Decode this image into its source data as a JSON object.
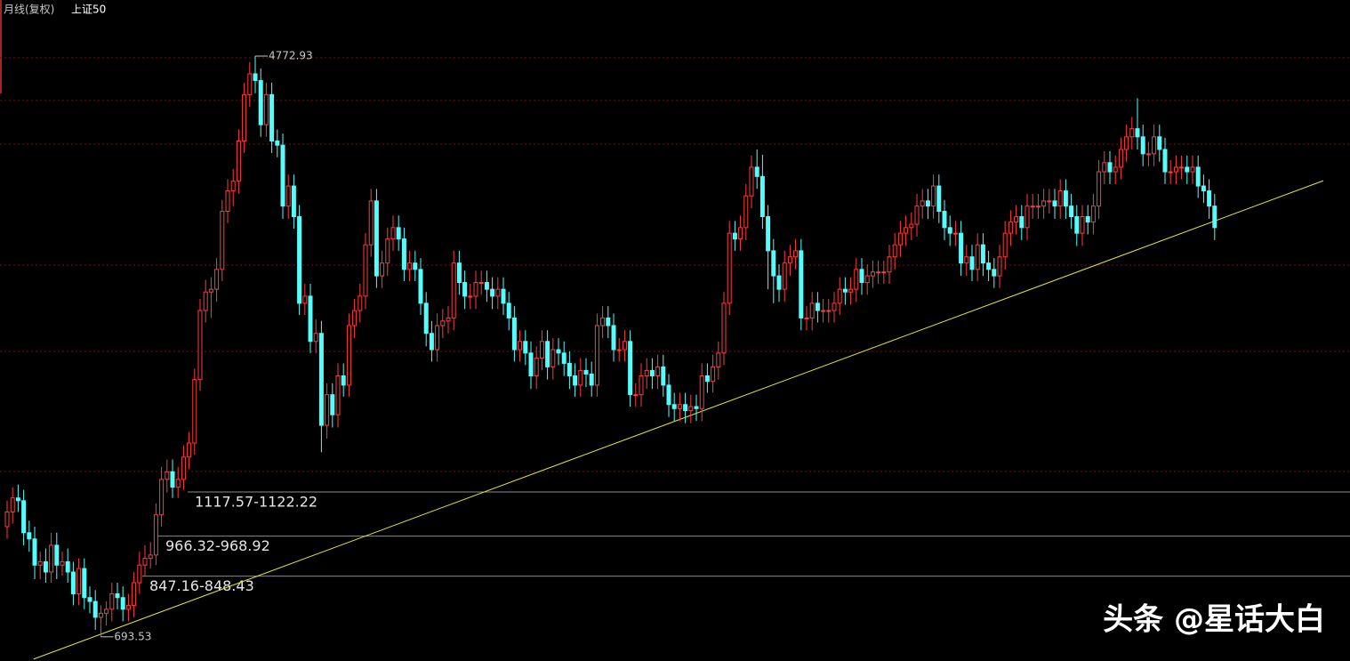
{
  "chart_data": {
    "type": "candlestick",
    "title": "月线(复权)",
    "subtitle": "上证50",
    "log_scale": true,
    "ylim": [
      640,
      5750
    ],
    "up_color": "#ff3c3c",
    "down_color": "#54fcfc",
    "open": [
      1000,
      1050,
      1100,
      1090,
      980,
      960,
      880,
      890,
      860,
      940,
      880,
      890,
      860,
      800,
      870,
      790,
      780,
      740,
      750,
      760,
      800,
      790,
      760,
      770,
      830,
      880,
      900,
      910,
      1040,
      1170,
      1200,
      1140,
      1170,
      1260,
      1320,
      1630,
      2050,
      2180,
      2200,
      2350,
      2850,
      3050,
      3150,
      3600,
      4200,
      4500,
      4400,
      3800,
      4200,
      3600,
      3550,
      2900,
      3100,
      2800,
      2100,
      2150,
      1850,
      1900,
      1400,
      1550,
      1450,
      1650,
      1600,
      1950,
      2050,
      2150,
      2550,
      2950,
      2300,
      2400,
      2600,
      2700,
      2600,
      2350,
      2400,
      2350,
      2100,
      1900,
      1800,
      1950,
      1980,
      2000,
      2400,
      2250,
      2150,
      2150,
      2250,
      2250,
      2200,
      2150,
      2200,
      2100,
      2000,
      1800,
      1850,
      1780,
      1650,
      1750,
      1850,
      1700,
      1800,
      1780,
      1720,
      1650,
      1600,
      1680,
      1660,
      1600,
      1950,
      2000,
      1950,
      1800,
      1800,
      1850,
      1550,
      1550,
      1650,
      1680,
      1650,
      1700,
      1600,
      1500,
      1480,
      1500,
      1470,
      1490,
      1480,
      1650,
      1620,
      1700,
      1780,
      2100,
      2650,
      2600,
      2700,
      3000,
      3300,
      3200,
      2800,
      2500,
      2300,
      2200,
      2400,
      2450,
      2500,
      2000,
      2000,
      2100,
      2050,
      2050,
      2050,
      2100,
      2200,
      2180,
      2200,
      2350,
      2250,
      2300,
      2330,
      2330,
      2330,
      2450,
      2550,
      2650,
      2700,
      2730,
      2900,
      2950,
      2900,
      3100,
      2850,
      2700,
      2650,
      2650,
      2400,
      2450,
      2350,
      2550,
      2400,
      2350,
      2300,
      2450,
      2650,
      2750,
      2800,
      2700,
      2900,
      2900,
      2900,
      2950,
      2950,
      2900,
      3050,
      2900,
      2800,
      2650,
      2800,
      2750,
      2900,
      3250,
      3350,
      3250,
      3300,
      3500,
      3650,
      3750,
      3650,
      3450,
      3450,
      3650,
      3500,
      3250,
      3250,
      3300,
      3300,
      3250,
      3300,
      3100,
      3050,
      2900
    ],
    "high": [
      1090,
      1140,
      1150,
      1130,
      1020,
      1000,
      920,
      930,
      980,
      980,
      920,
      930,
      890,
      900,
      900,
      820,
      810,
      770,
      780,
      830,
      830,
      820,
      800,
      860,
      920,
      940,
      950,
      1080,
      1220,
      1250,
      1250,
      1220,
      1310,
      1370,
      1690,
      2130,
      2270,
      2290,
      2440,
      2960,
      3170,
      3280,
      3740,
      4370,
      4680,
      4772.93,
      4580,
      4370,
      4370,
      3740,
      3690,
      3220,
      3220,
      2910,
      2240,
      2240,
      1990,
      1980,
      1610,
      1610,
      1720,
      1720,
      2030,
      2130,
      2240,
      2650,
      3070,
      3070,
      2500,
      2700,
      2810,
      2810,
      2700,
      2500,
      2500,
      2440,
      2180,
      1980,
      2030,
      2060,
      2080,
      2500,
      2500,
      2340,
      2240,
      2340,
      2340,
      2340,
      2290,
      2290,
      2290,
      2180,
      2080,
      1920,
      1920,
      1850,
      1820,
      1920,
      1920,
      1870,
      1870,
      1850,
      1790,
      1720,
      1750,
      1750,
      1730,
      2030,
      2080,
      2080,
      2030,
      1870,
      1920,
      1920,
      1610,
      1720,
      1750,
      1750,
      1770,
      1770,
      1660,
      1560,
      1560,
      1560,
      1550,
      1550,
      1720,
      1720,
      1770,
      1850,
      2180,
      2760,
      2760,
      2810,
      3120,
      3430,
      3500,
      3440,
      2910,
      2600,
      2390,
      2500,
      2550,
      2600,
      2600,
      2080,
      2180,
      2180,
      2130,
      2130,
      2180,
      2290,
      2290,
      2290,
      2440,
      2440,
      2390,
      2420,
      2420,
      2420,
      2550,
      2650,
      2760,
      2810,
      2840,
      3020,
      3070,
      3070,
      3220,
      3220,
      2960,
      2810,
      2760,
      2760,
      2550,
      2550,
      2650,
      2650,
      2500,
      2440,
      2550,
      2760,
      2860,
      2910,
      2910,
      3020,
      3020,
      3020,
      3070,
      3070,
      3070,
      3170,
      3170,
      3020,
      2910,
      2910,
      2910,
      3020,
      3380,
      3480,
      3480,
      3430,
      3640,
      3800,
      3900,
      4150,
      3800,
      3590,
      3800,
      3800,
      3640,
      3380,
      3430,
      3430,
      3430,
      3430,
      3430,
      3220,
      3170,
      3020
    ],
    "low": [
      960,
      1010,
      1050,
      940,
      920,
      840,
      840,
      830,
      830,
      840,
      850,
      830,
      770,
      770,
      760,
      750,
      710,
      693.53,
      720,
      730,
      760,
      730,
      730,
      740,
      800,
      850,
      870,
      880,
      1000,
      1120,
      1100,
      1100,
      1130,
      1210,
      1270,
      1570,
      1970,
      2000,
      2110,
      2260,
      2740,
      2900,
      3020,
      3460,
      4030,
      4220,
      3650,
      3650,
      3460,
      3410,
      2780,
      2780,
      2690,
      2020,
      2020,
      1780,
      1780,
      1280,
      1340,
      1390,
      1390,
      1540,
      1540,
      1870,
      1970,
      2060,
      2450,
      2210,
      2210,
      2300,
      2500,
      2500,
      2260,
      2260,
      2260,
      2020,
      1820,
      1730,
      1730,
      1870,
      1900,
      1920,
      2160,
      2060,
      2060,
      2060,
      2160,
      2110,
      2060,
      2060,
      2020,
      1920,
      1730,
      1730,
      1710,
      1580,
      1580,
      1680,
      1630,
      1630,
      1710,
      1650,
      1580,
      1540,
      1540,
      1590,
      1540,
      1540,
      1870,
      1870,
      1730,
      1730,
      1730,
      1490,
      1490,
      1490,
      1580,
      1580,
      1580,
      1540,
      1440,
      1420,
      1420,
      1410,
      1410,
      1420,
      1420,
      1560,
      1560,
      1630,
      1710,
      2020,
      2500,
      2500,
      2590,
      2880,
      3070,
      2690,
      2200,
      2100,
      2110,
      2110,
      2300,
      2350,
      1920,
      1920,
      1920,
      1970,
      1970,
      1970,
      1970,
      2020,
      2090,
      2090,
      2110,
      2160,
      2160,
      2210,
      2240,
      2240,
      2240,
      2350,
      2450,
      2540,
      2590,
      2620,
      2780,
      2780,
      2780,
      2740,
      2590,
      2540,
      2540,
      2300,
      2300,
      2260,
      2260,
      2300,
      2260,
      2210,
      2210,
      2350,
      2540,
      2640,
      2590,
      2590,
      2780,
      2780,
      2780,
      2830,
      2780,
      2780,
      2780,
      2690,
      2540,
      2540,
      2640,
      2640,
      2780,
      3120,
      3120,
      3120,
      3170,
      3360,
      3500,
      3500,
      3310,
      3310,
      3310,
      3360,
      3120,
      3120,
      3120,
      3170,
      3120,
      3120,
      2980,
      2930,
      2780,
      2590
    ],
    "close": [
      1050,
      1100,
      1090,
      980,
      960,
      880,
      890,
      860,
      940,
      880,
      890,
      860,
      800,
      870,
      790,
      780,
      740,
      750,
      760,
      800,
      790,
      760,
      770,
      830,
      880,
      900,
      910,
      1040,
      1170,
      1200,
      1140,
      1170,
      1260,
      1320,
      1630,
      2050,
      2180,
      2200,
      2350,
      2850,
      3050,
      3150,
      3600,
      4200,
      4500,
      4400,
      3800,
      4200,
      3600,
      3550,
      2900,
      3100,
      2800,
      2100,
      2150,
      1850,
      1900,
      1400,
      1550,
      1450,
      1650,
      1600,
      1950,
      2050,
      2150,
      2550,
      2950,
      2300,
      2400,
      2600,
      2700,
      2600,
      2350,
      2400,
      2350,
      2100,
      1900,
      1800,
      1950,
      1980,
      2000,
      2400,
      2250,
      2150,
      2150,
      2250,
      2250,
      2200,
      2150,
      2200,
      2100,
      2000,
      1800,
      1850,
      1780,
      1650,
      1750,
      1850,
      1700,
      1800,
      1780,
      1720,
      1650,
      1600,
      1680,
      1660,
      1600,
      1950,
      2000,
      1950,
      1800,
      1800,
      1850,
      1550,
      1550,
      1650,
      1680,
      1650,
      1700,
      1600,
      1500,
      1480,
      1500,
      1470,
      1490,
      1480,
      1650,
      1620,
      1700,
      1780,
      2100,
      2650,
      2600,
      2700,
      3000,
      3300,
      3200,
      2800,
      2500,
      2300,
      2200,
      2400,
      2450,
      2500,
      2000,
      2000,
      2100,
      2050,
      2050,
      2050,
      2100,
      2200,
      2180,
      2200,
      2350,
      2250,
      2300,
      2330,
      2330,
      2330,
      2450,
      2550,
      2650,
      2700,
      2730,
      2900,
      2950,
      2900,
      3100,
      2850,
      2700,
      2650,
      2650,
      2400,
      2450,
      2350,
      2550,
      2400,
      2350,
      2300,
      2450,
      2650,
      2750,
      2800,
      2700,
      2900,
      2900,
      2900,
      2950,
      2950,
      2900,
      3050,
      2900,
      2800,
      2650,
      2800,
      2750,
      2900,
      3250,
      3350,
      3250,
      3300,
      3500,
      3650,
      3750,
      3650,
      3450,
      3450,
      3650,
      3500,
      3250,
      3250,
      3300,
      3300,
      3250,
      3300,
      3100,
      3050,
      2900,
      2700
    ],
    "annotations": [
      {
        "text": "1117.57-1122.22",
        "low": 1117.57,
        "high": 1122.22
      },
      {
        "text": "966.32-968.92",
        "low": 966.32,
        "high": 968.92
      },
      {
        "text": "847.16-848.43",
        "low": 847.16,
        "high": 848.43
      }
    ],
    "trendline": {
      "x": [
        4.8,
        238.7
      ],
      "values": [
        644,
        3155
      ],
      "color": "#e6e632"
    },
    "watermark": "头条 @星话大白"
  }
}
